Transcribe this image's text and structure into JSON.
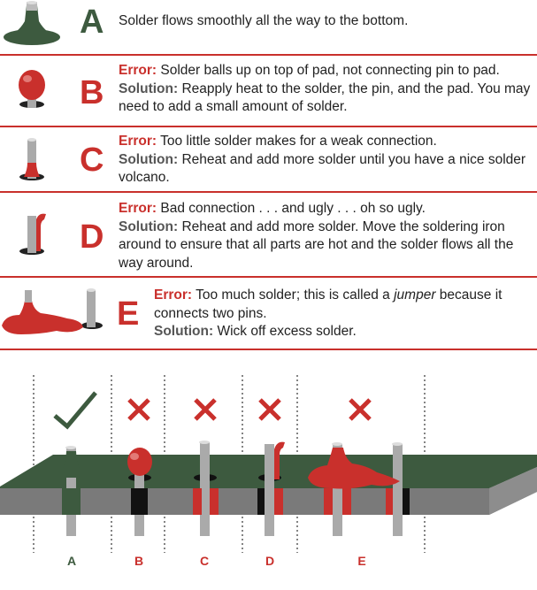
{
  "rows": [
    {
      "letter": "A",
      "text": "Solder flows smoothly all the way to the bottom."
    },
    {
      "letter": "B",
      "error_label": "Error:",
      "error": " Solder balls up on top of pad, not connecting pin to pad.",
      "solution_label": "Solution:",
      "solution": " Reapply heat to the solder, the pin, and the pad. You may need to add a small amount of solder."
    },
    {
      "letter": "C",
      "error_label": "Error:",
      "error": " Too little solder makes for a weak connection.",
      "solution_label": "Solution:",
      "solution": " Reheat and add more solder until you have a nice solder volcano."
    },
    {
      "letter": "D",
      "error_label": "Error:",
      "error": " Bad connection . . . and ugly . . . oh so ugly.",
      "solution_label": "Solution:",
      "solution": " Reheat and add more solder. Move the soldering iron around to ensure that all parts are hot and the solder flows all the way around."
    },
    {
      "letter": "E",
      "error_label": "Error:",
      "error_pre": " Too much solder; this is called a ",
      "error_em": "jumper",
      "error_post": " because it connects two pins.",
      "solution_label": "Solution:",
      "solution": " Wick off excess solder."
    }
  ],
  "columns": [
    "A",
    "B",
    "C",
    "D",
    "E"
  ],
  "colors": {
    "accent": "#c9302c",
    "board": "#3d5a3f",
    "board_side": "#7a7a7a",
    "text": "#222222",
    "good": "#3d5a3f"
  }
}
